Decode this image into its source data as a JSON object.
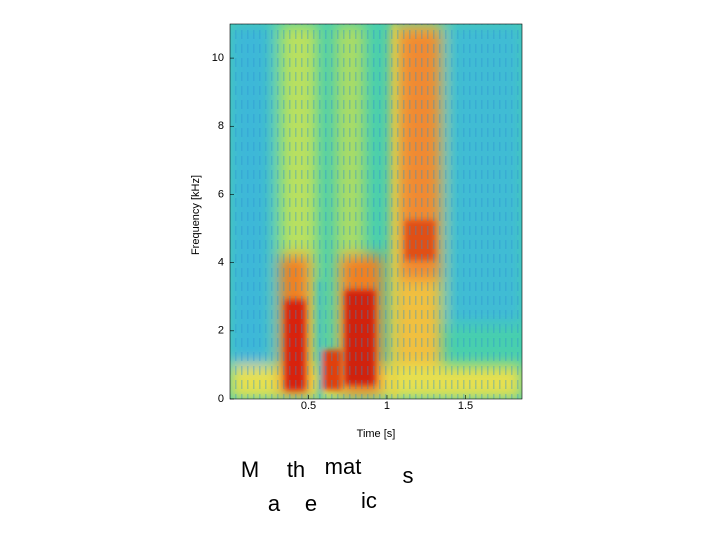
{
  "chart_data": {
    "type": "spectrogram",
    "xlabel": "Time [s]",
    "ylabel": "Frequency [kHz]",
    "xlim": [
      0,
      1.86
    ],
    "ylim": [
      0,
      11
    ],
    "xticks": [
      0.5,
      1,
      1.5
    ],
    "yticks": [
      0,
      2,
      4,
      6,
      8,
      10
    ],
    "annotations": [
      "M",
      "th",
      "mat",
      "s",
      "a",
      "e",
      "ic"
    ]
  }
}
